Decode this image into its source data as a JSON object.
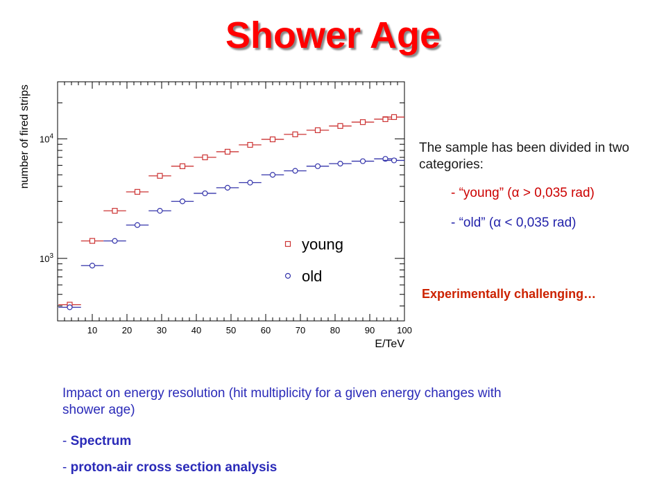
{
  "slide": {
    "title": "Shower Age",
    "side_text": "The sample has been divided in two categories:",
    "category_young_prefix": "- ",
    "category_young": "“young” (α > 0,035 rad)",
    "category_old_prefix": "- ",
    "category_old": "“old” (α < 0,035 rad)",
    "challenge": "Experimentally challenging…",
    "impact": "Impact on energy resolution (hit multiplicity for a given energy changes with shower age)",
    "bullet1_prefix": "- ",
    "bullet1": "Spectrum",
    "bullet2_prefix": "- ",
    "bullet2": "proton-air cross section analysis"
  },
  "chart_data": {
    "type": "scatter",
    "xlabel": "E/TeV",
    "ylabel": "number of fired strips",
    "xlim": [
      0,
      100
    ],
    "ylim": [
      300,
      30000
    ],
    "yscale": "log",
    "x_ticks": [
      10,
      20,
      30,
      40,
      50,
      60,
      70,
      80,
      90,
      100
    ],
    "y_tick_labels": [
      {
        "value": 1000,
        "base": "10",
        "exp": "3"
      },
      {
        "value": 10000,
        "base": "10",
        "exp": "4"
      }
    ],
    "x_error_halfwidth": 3.25,
    "legend": {
      "placement": "center-right",
      "entries": [
        "young",
        "old"
      ]
    },
    "series": [
      {
        "name": "young",
        "marker": "square",
        "color": "#cc3333",
        "x": [
          3.5,
          10,
          16.5,
          23,
          29.5,
          36,
          42.5,
          49,
          55.5,
          62,
          68.5,
          75,
          81.5,
          88,
          94.5,
          97
        ],
        "y": [
          410,
          1400,
          2500,
          3600,
          4900,
          5900,
          7000,
          7800,
          8900,
          9900,
          10900,
          11800,
          12800,
          13800,
          14600,
          15200
        ]
      },
      {
        "name": "old",
        "marker": "circle",
        "color": "#3333aa",
        "x": [
          3.5,
          10,
          16.5,
          23,
          29.5,
          36,
          42.5,
          49,
          55.5,
          62,
          68.5,
          75,
          81.5,
          88,
          94.5,
          97
        ],
        "y": [
          390,
          870,
          1400,
          1900,
          2500,
          3000,
          3500,
          3900,
          4300,
          5000,
          5400,
          5900,
          6200,
          6500,
          6800,
          6600
        ]
      }
    ]
  }
}
